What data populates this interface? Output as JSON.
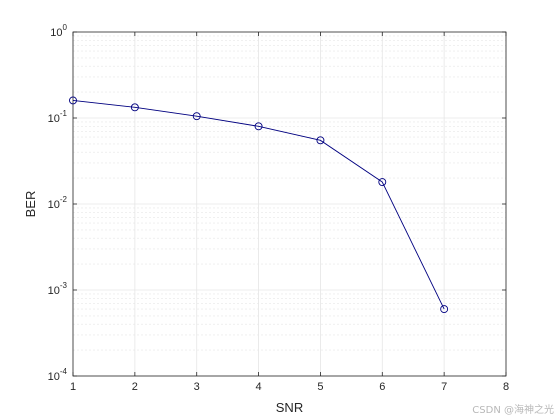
{
  "chart_data": {
    "type": "line",
    "x": [
      1,
      2,
      3,
      4,
      5,
      6,
      7
    ],
    "series": [
      {
        "values": [
          0.16,
          0.133,
          0.105,
          0.08,
          0.055,
          0.018,
          0.0006
        ]
      }
    ],
    "xlabel": "SNR",
    "ylabel": "BER",
    "xlim": [
      1,
      8
    ],
    "ylim": [
      0.0001,
      1
    ],
    "yscale": "log",
    "x_ticks": [
      "1",
      "2",
      "3",
      "4",
      "5",
      "6",
      "7",
      "8"
    ],
    "y_ticks": [
      {
        "base": "10",
        "exp": "0"
      },
      {
        "base": "10",
        "exp": "-1"
      },
      {
        "base": "10",
        "exp": "-2"
      },
      {
        "base": "10",
        "exp": "-3"
      },
      {
        "base": "10",
        "exp": "-4"
      }
    ],
    "grid": true,
    "marker": "circle",
    "series_color": "#000080",
    "grid_color": "#e6e6e6"
  },
  "watermark": "CSDN @海神之光"
}
